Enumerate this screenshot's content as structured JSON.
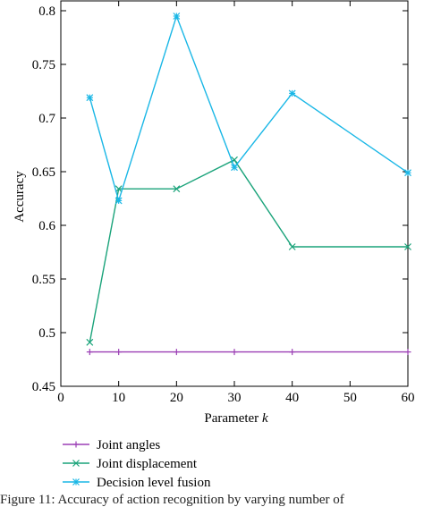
{
  "chart_data": {
    "type": "line",
    "xlabel": "Parameter",
    "xlabel_italic": "k",
    "ylabel": "Accuracy",
    "xlim": [
      0,
      60
    ],
    "ylim": [
      0.45,
      0.8
    ],
    "xticks": [
      "0",
      "10",
      "20",
      "30",
      "40",
      "50",
      "60"
    ],
    "yticks": [
      "0.45",
      "0.5",
      "0.55",
      "0.6",
      "0.65",
      "0.7",
      "0.75",
      "0.8"
    ],
    "grid": false,
    "legend_position": "bottom-left, below plot",
    "series": [
      {
        "name": "Joint angles",
        "color": "#9b3fb5",
        "marker": "plus",
        "x": [
          5,
          10,
          20,
          30,
          40,
          60
        ],
        "y": [
          0.482,
          0.482,
          0.482,
          0.482,
          0.482,
          0.482
        ]
      },
      {
        "name": "Joint displacement",
        "color": "#1aa37a",
        "marker": "cross",
        "x": [
          5,
          10,
          20,
          30,
          40,
          60
        ],
        "y": [
          0.491,
          0.634,
          0.634,
          0.661,
          0.58,
          0.58
        ]
      },
      {
        "name": "Decision level fusion",
        "color": "#1ab7e6",
        "marker": "star",
        "x": [
          5,
          10,
          20,
          30,
          40,
          60
        ],
        "y": [
          0.719,
          0.623,
          0.795,
          0.654,
          0.723,
          0.649
        ]
      }
    ]
  },
  "caption": "Figure 11: Accuracy of action recognition by varying number of"
}
